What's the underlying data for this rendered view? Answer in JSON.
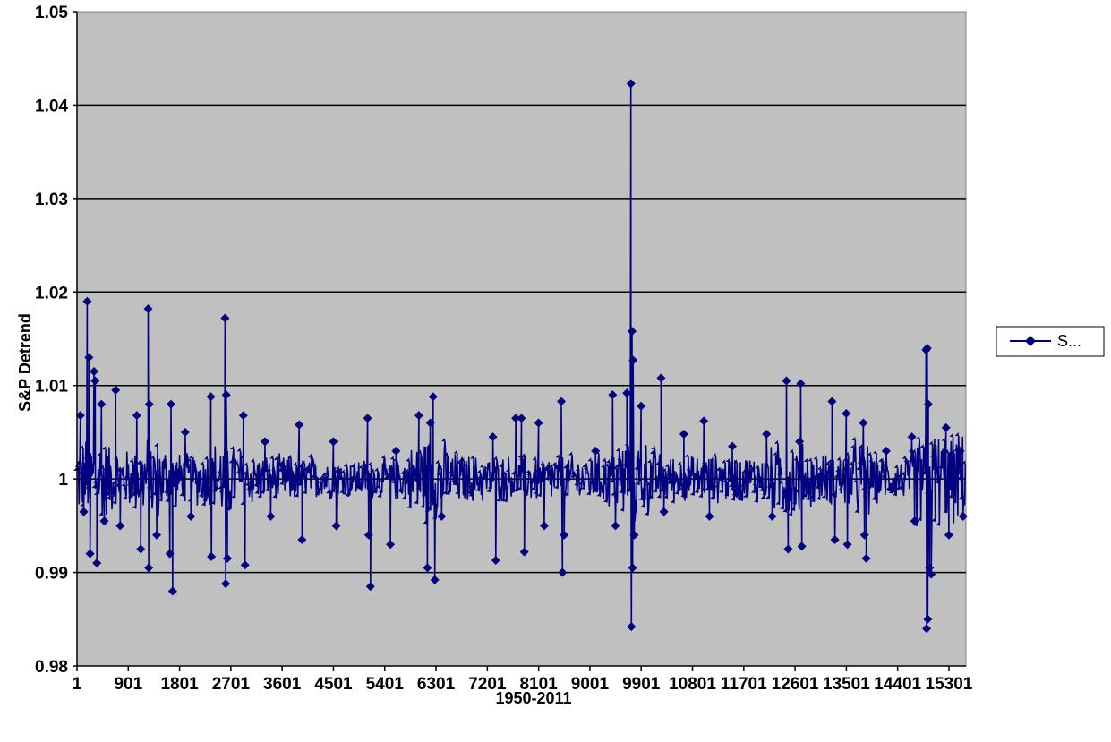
{
  "chart_data": {
    "type": "line",
    "title": "",
    "xlabel": "1950-2011",
    "ylabel": "S&P Detrend",
    "ylim": [
      0.98,
      1.05
    ],
    "yticks": [
      "0.98",
      "0.99",
      "1",
      "1.01",
      "1.02",
      "1.03",
      "1.04",
      "1.05"
    ],
    "ytick_values": [
      0.98,
      0.99,
      1.0,
      1.01,
      1.02,
      1.03,
      1.04,
      1.05
    ],
    "xlim": [
      1,
      15600
    ],
    "xticks": [
      "1",
      "901",
      "1801",
      "2701",
      "3601",
      "4501",
      "5401",
      "6301",
      "7201",
      "8101",
      "9001",
      "9901",
      "10801",
      "11701",
      "12601",
      "13501",
      "14401",
      "15301"
    ],
    "xtick_values": [
      1,
      901,
      1801,
      2701,
      3601,
      4501,
      5401,
      6301,
      7201,
      8101,
      9001,
      9901,
      10801,
      11701,
      12601,
      13501,
      14401,
      15301
    ],
    "grid": true,
    "legend_position": "right",
    "colors": {
      "series": "#000080",
      "plot_bg": "#c0c0c0",
      "grid": "#000000"
    },
    "series": [
      {
        "name": "S...",
        "spikes": [
          {
            "x": 60,
            "y": 1.0068
          },
          {
            "x": 120,
            "y": 0.9965
          },
          {
            "x": 180,
            "y": 1.019
          },
          {
            "x": 210,
            "y": 1.013
          },
          {
            "x": 230,
            "y": 0.992
          },
          {
            "x": 300,
            "y": 1.0115
          },
          {
            "x": 320,
            "y": 1.0105
          },
          {
            "x": 350,
            "y": 0.991
          },
          {
            "x": 430,
            "y": 1.008
          },
          {
            "x": 480,
            "y": 0.9955
          },
          {
            "x": 680,
            "y": 1.0095
          },
          {
            "x": 760,
            "y": 0.995
          },
          {
            "x": 1050,
            "y": 1.0068
          },
          {
            "x": 1120,
            "y": 0.9925
          },
          {
            "x": 1250,
            "y": 1.0182
          },
          {
            "x": 1270,
            "y": 1.008
          },
          {
            "x": 1260,
            "y": 0.9905
          },
          {
            "x": 1400,
            "y": 0.994
          },
          {
            "x": 1650,
            "y": 1.008
          },
          {
            "x": 1680,
            "y": 0.988
          },
          {
            "x": 1630,
            "y": 0.992
          },
          {
            "x": 1900,
            "y": 1.005
          },
          {
            "x": 2000,
            "y": 0.996
          },
          {
            "x": 2350,
            "y": 1.0088
          },
          {
            "x": 2360,
            "y": 0.9917
          },
          {
            "x": 2600,
            "y": 1.0172
          },
          {
            "x": 2620,
            "y": 1.009
          },
          {
            "x": 2610,
            "y": 0.9888
          },
          {
            "x": 2640,
            "y": 0.9915
          },
          {
            "x": 2920,
            "y": 1.0068
          },
          {
            "x": 2950,
            "y": 0.9908
          },
          {
            "x": 3300,
            "y": 1.004
          },
          {
            "x": 3400,
            "y": 0.996
          },
          {
            "x": 3900,
            "y": 1.0058
          },
          {
            "x": 3950,
            "y": 0.9935
          },
          {
            "x": 4500,
            "y": 1.004
          },
          {
            "x": 4550,
            "y": 0.995
          },
          {
            "x": 5100,
            "y": 1.0065
          },
          {
            "x": 5150,
            "y": 0.9885
          },
          {
            "x": 5120,
            "y": 0.994
          },
          {
            "x": 5500,
            "y": 0.993
          },
          {
            "x": 5600,
            "y": 1.003
          },
          {
            "x": 6000,
            "y": 1.0068
          },
          {
            "x": 6150,
            "y": 0.9905
          },
          {
            "x": 6250,
            "y": 1.0088
          },
          {
            "x": 6280,
            "y": 0.9892
          },
          {
            "x": 6200,
            "y": 1.006
          },
          {
            "x": 6400,
            "y": 0.996
          },
          {
            "x": 7300,
            "y": 1.0045
          },
          {
            "x": 7350,
            "y": 0.9913
          },
          {
            "x": 7700,
            "y": 1.0065
          },
          {
            "x": 7800,
            "y": 1.0065
          },
          {
            "x": 7850,
            "y": 0.9922
          },
          {
            "x": 8100,
            "y": 1.006
          },
          {
            "x": 8200,
            "y": 0.995
          },
          {
            "x": 8500,
            "y": 1.0083
          },
          {
            "x": 8520,
            "y": 0.99
          },
          {
            "x": 8550,
            "y": 0.994
          },
          {
            "x": 9100,
            "y": 1.003
          },
          {
            "x": 9400,
            "y": 1.009
          },
          {
            "x": 9450,
            "y": 0.995
          },
          {
            "x": 9650,
            "y": 1.0092
          },
          {
            "x": 9720,
            "y": 1.0423
          },
          {
            "x": 9740,
            "y": 1.0158
          },
          {
            "x": 9760,
            "y": 1.0127
          },
          {
            "x": 9730,
            "y": 0.9842
          },
          {
            "x": 9750,
            "y": 0.9905
          },
          {
            "x": 9780,
            "y": 0.994
          },
          {
            "x": 9900,
            "y": 1.0078
          },
          {
            "x": 10250,
            "y": 1.0108
          },
          {
            "x": 10300,
            "y": 0.9965
          },
          {
            "x": 10650,
            "y": 1.0048
          },
          {
            "x": 11000,
            "y": 1.0062
          },
          {
            "x": 11100,
            "y": 0.996
          },
          {
            "x": 11500,
            "y": 1.0035
          },
          {
            "x": 12100,
            "y": 1.0048
          },
          {
            "x": 12200,
            "y": 0.996
          },
          {
            "x": 12450,
            "y": 1.0105
          },
          {
            "x": 12480,
            "y": 0.9925
          },
          {
            "x": 12700,
            "y": 1.0102
          },
          {
            "x": 12720,
            "y": 0.9928
          },
          {
            "x": 12680,
            "y": 1.004
          },
          {
            "x": 13250,
            "y": 1.0083
          },
          {
            "x": 13300,
            "y": 0.9935
          },
          {
            "x": 13500,
            "y": 1.007
          },
          {
            "x": 13520,
            "y": 0.993
          },
          {
            "x": 13800,
            "y": 1.006
          },
          {
            "x": 13850,
            "y": 0.9915
          },
          {
            "x": 13820,
            "y": 0.994
          },
          {
            "x": 14200,
            "y": 1.003
          },
          {
            "x": 14650,
            "y": 1.0045
          },
          {
            "x": 14700,
            "y": 0.9955
          },
          {
            "x": 14900,
            "y": 1.0138
          },
          {
            "x": 14920,
            "y": 1.014
          },
          {
            "x": 14940,
            "y": 1.008
          },
          {
            "x": 14910,
            "y": 0.984
          },
          {
            "x": 14930,
            "y": 0.985
          },
          {
            "x": 14960,
            "y": 0.9905
          },
          {
            "x": 14990,
            "y": 0.9898
          },
          {
            "x": 15250,
            "y": 1.0055
          },
          {
            "x": 15300,
            "y": 0.994
          },
          {
            "x": 15500,
            "y": 1.003
          },
          {
            "x": 15550,
            "y": 0.996
          }
        ]
      }
    ]
  }
}
